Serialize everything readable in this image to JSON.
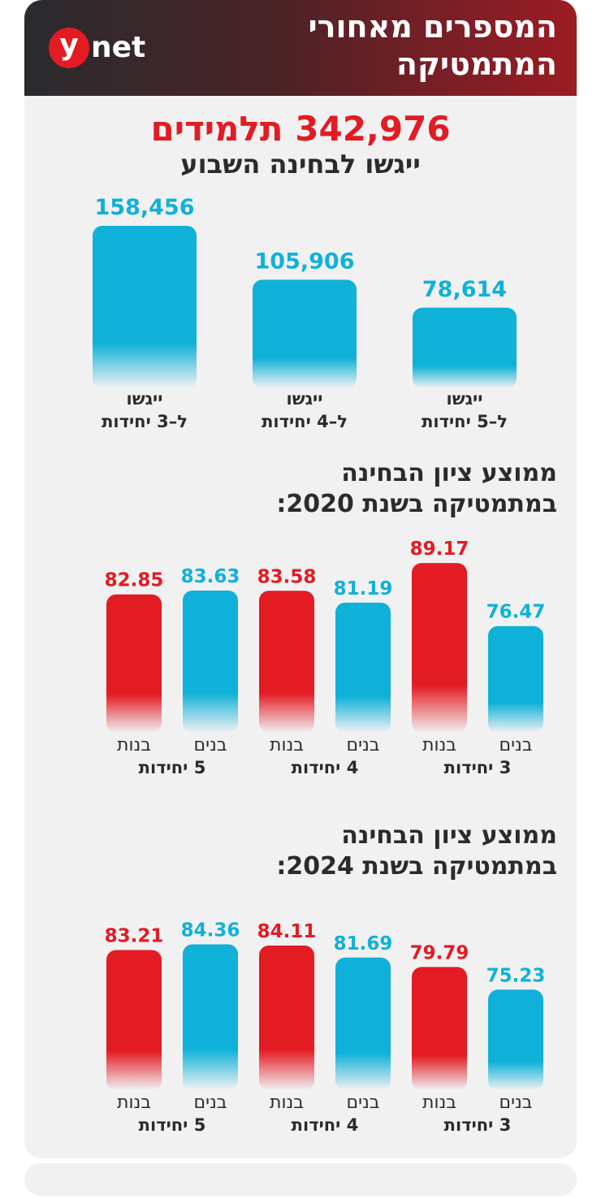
{
  "header": {
    "title_line1": "המספרים מאחורי",
    "title_line2": "המתמטיקה",
    "logo_letter": "y",
    "logo_word": "net"
  },
  "summary": {
    "total_number": "342,976",
    "total_word": "תלמידים",
    "subtitle": "ייגשו לבחינה השבוע"
  },
  "colors": {
    "blue": "#0fb1d8",
    "red": "#e31b23",
    "text": "#2b2b2b"
  },
  "chart_data": [
    {
      "type": "bar",
      "id": "registrations",
      "title": "",
      "categories": [
        "ל–5 יחידות",
        "ל–4 יחידות",
        "ל–3 יחידות"
      ],
      "category_prefix": "ייגשו",
      "values": [
        78614,
        105906,
        158456
      ],
      "value_labels": [
        "78,614",
        "105,906",
        "158,456"
      ],
      "color": "#0fb1d8",
      "order": "right-to-left"
    },
    {
      "type": "bar",
      "id": "avg-2020",
      "title": "ממוצע ציון הבחינה במתמטיקה בשנת 2020:",
      "title_line1": "ממוצע ציון הבחינה",
      "title_line2": "במתמטיקה בשנת 2020:",
      "categories": [
        "3 יחידות",
        "4 יחידות",
        "5 יחידות"
      ],
      "series": [
        {
          "name": "בנים",
          "color": "#0fb1d8",
          "values": [
            76.47,
            81.19,
            83.63
          ]
        },
        {
          "name": "בנות",
          "color": "#e31b23",
          "values": [
            89.17,
            83.58,
            82.85
          ]
        }
      ],
      "order": "right-to-left"
    },
    {
      "type": "bar",
      "id": "avg-2024",
      "title": "ממוצע ציון הבחינה במתמטיקה בשנת 2024:",
      "title_line1": "ממוצע ציון הבחינה",
      "title_line2": "במתמטיקה בשנת 2024:",
      "categories": [
        "3 יחידות",
        "4 יחידות",
        "5 יחידות"
      ],
      "series": [
        {
          "name": "בנים",
          "color": "#0fb1d8",
          "values": [
            75.23,
            81.69,
            84.36
          ]
        },
        {
          "name": "בנות",
          "color": "#e31b23",
          "values": [
            79.79,
            84.11,
            83.21
          ]
        }
      ],
      "order": "right-to-left"
    }
  ]
}
